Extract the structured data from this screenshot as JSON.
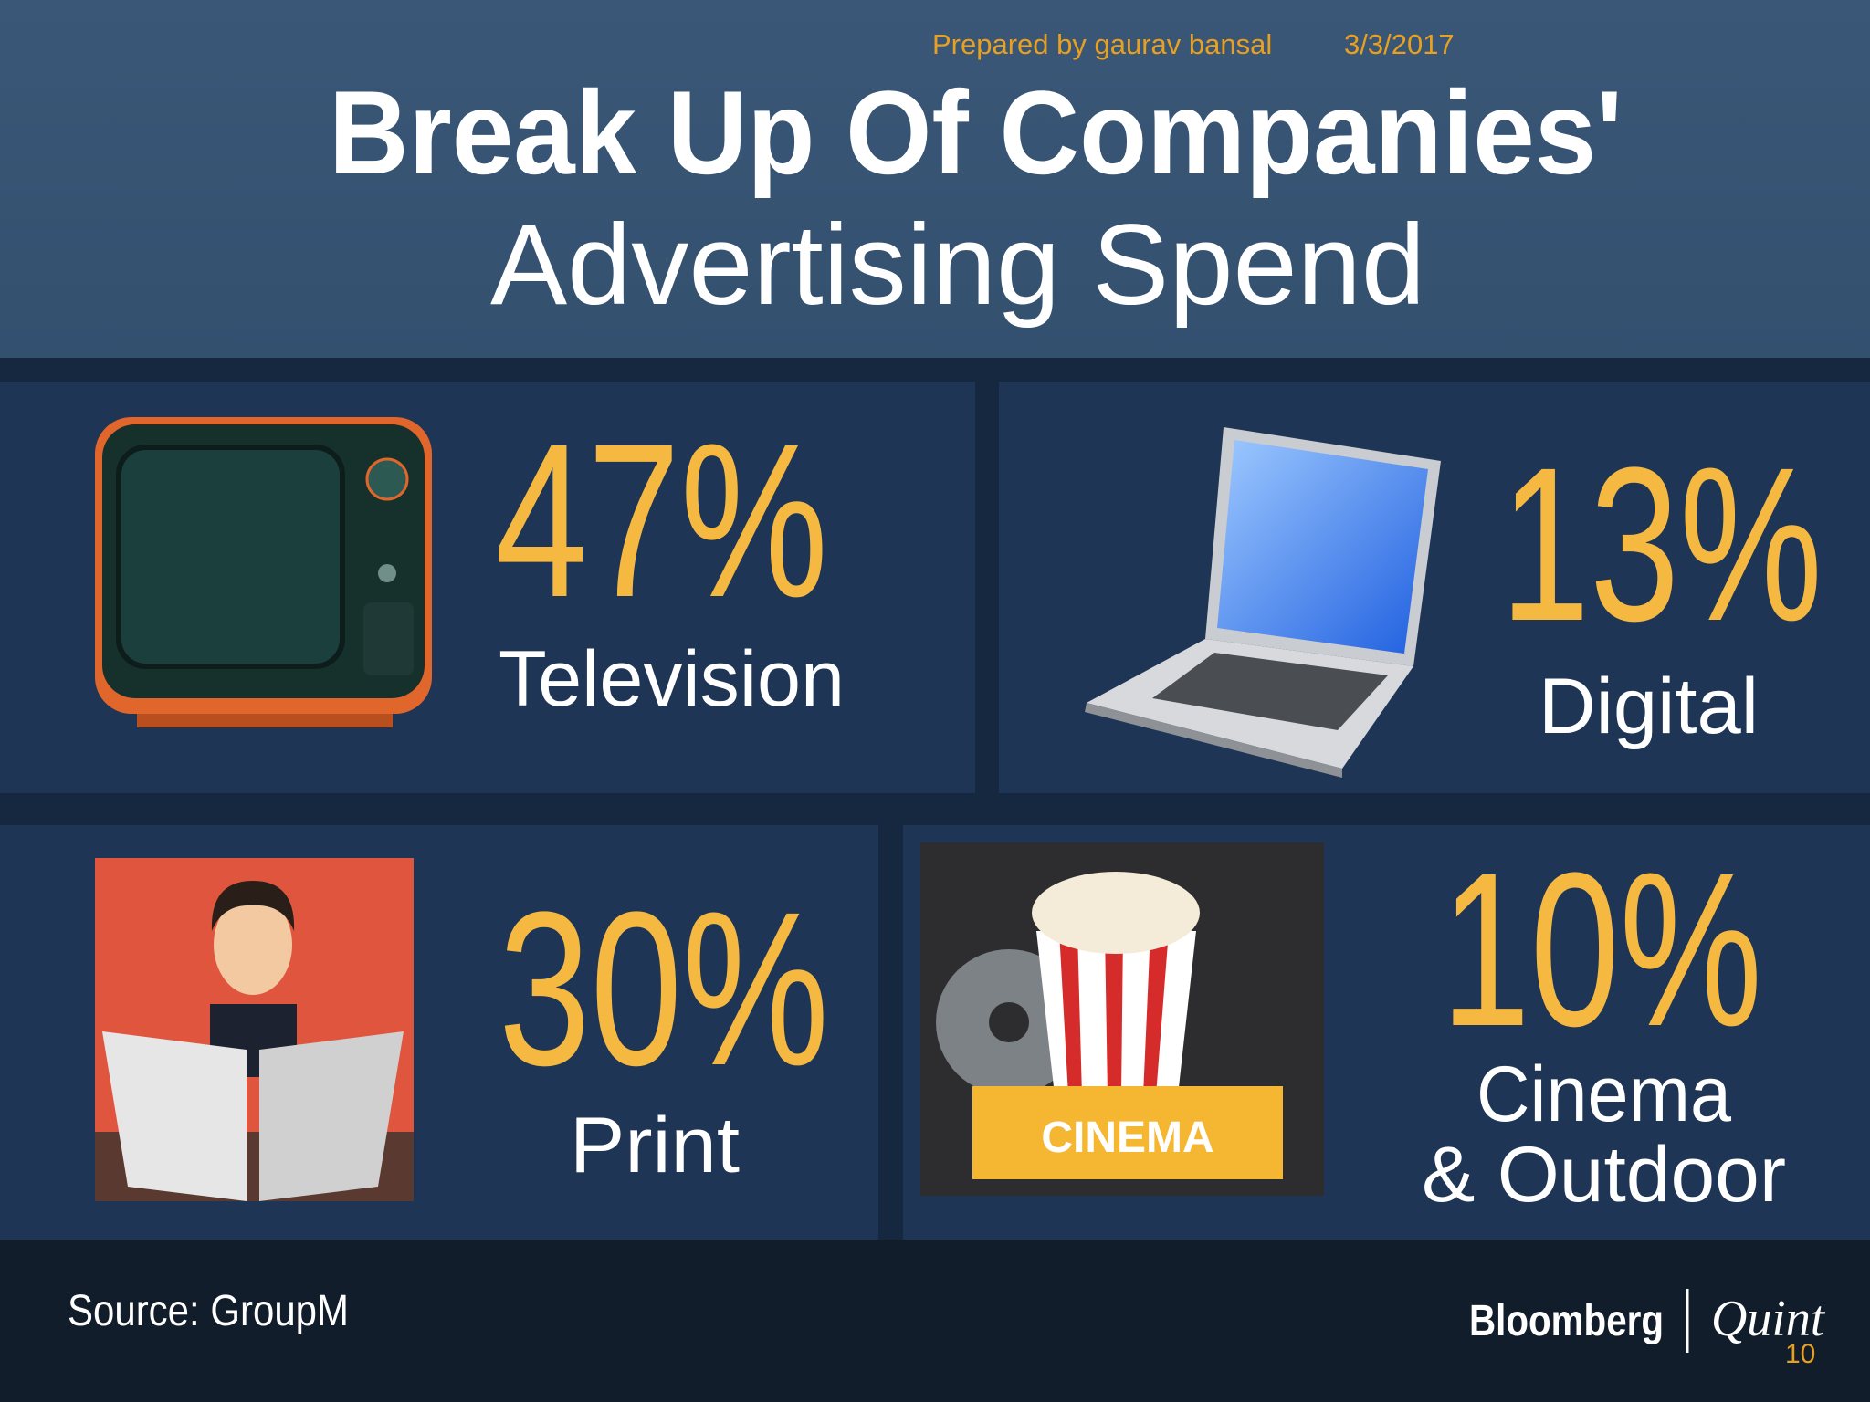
{
  "header": {
    "watermark": "Prepared by gaurav bansal",
    "date": "3/3/2017",
    "title_line1": "Break Up Of Companies'",
    "title_line2": "Advertising Spend"
  },
  "panels": [
    {
      "value": "47%",
      "label": "Television"
    },
    {
      "value": "13%",
      "label": "Digital"
    },
    {
      "value": "30%",
      "label": "Print"
    },
    {
      "value": "10%",
      "label": "Cinema",
      "label_line2": "& Outdoor"
    }
  ],
  "icons": {
    "cinema_sign": "CINEMA"
  },
  "footer": {
    "source": "Source: GroupM",
    "brand": "Bloomberg",
    "brand2": "Quint",
    "page_number": "10"
  }
}
